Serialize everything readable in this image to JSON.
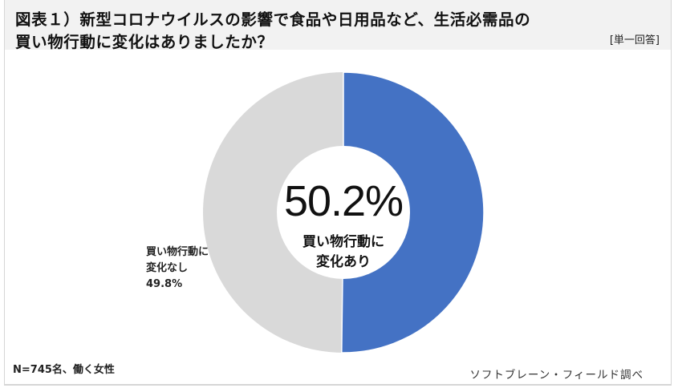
{
  "header": {
    "title_line1": "図表１）新型コロナウイルスの影響で食品や日用品など、生活必需品の",
    "title_line2": "買い物行動に変化はありましたか？",
    "answer_type": "[単一回答]"
  },
  "center": {
    "value": "50.2%",
    "label_line1": "買い物行動に",
    "label_line2": "変化あり"
  },
  "side_label": {
    "line1": "買い物行動に",
    "line2": "変化なし",
    "line3": "49.8%"
  },
  "footer": {
    "note": "N=745名、働く女性",
    "source": "ソフトブレーン・フィールド調べ"
  },
  "colors": {
    "changed": "#4472c4",
    "not_changed": "#d9d9d9",
    "header_bg": "#f2f2f2"
  },
  "chart_data": {
    "type": "pie",
    "subtype": "donut",
    "title": "図表１）新型コロナウイルスの影響で食品や日用品など、生活必需品の買い物行動に変化はありましたか？",
    "subtitle": "[単一回答]",
    "categories": [
      "買い物行動に変化あり",
      "買い物行動に変化なし"
    ],
    "values": [
      50.2,
      49.8
    ],
    "unit": "%",
    "colors": [
      "#4472c4",
      "#d9d9d9"
    ],
    "start_angle": "12 o'clock, clockwise",
    "annotations": [
      "50.2% 買い物行動に変化あり (center)",
      "買い物行動に変化なし 49.8% (left)"
    ],
    "sample_note": "N=745名、働く女性",
    "source": "ソフトブレーン・フィールド調べ",
    "legend": "none"
  }
}
